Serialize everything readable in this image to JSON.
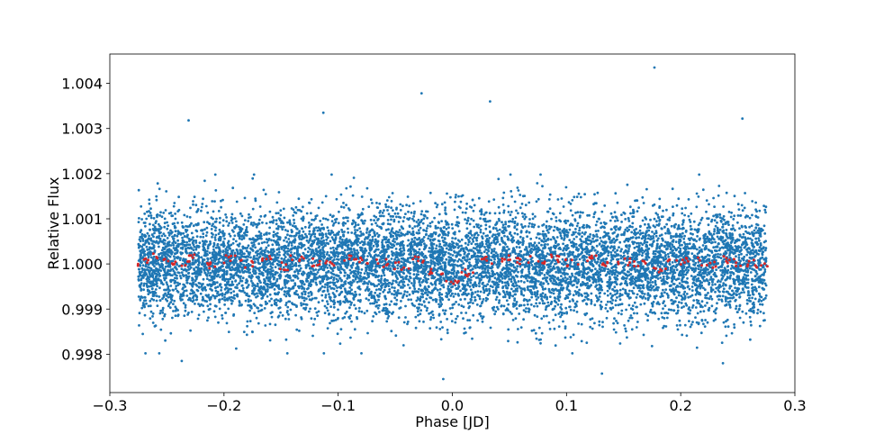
{
  "chart_data": {
    "type": "scatter",
    "title": "",
    "xlabel": "Phase [JD]",
    "ylabel": "Relative Flux",
    "xlim": [
      -0.3,
      0.3
    ],
    "ylim": [
      0.99715,
      1.00465
    ],
    "xticks": [
      -0.3,
      -0.2,
      -0.1,
      0.0,
      0.1,
      0.2,
      0.3
    ],
    "xtick_labels": [
      "−0.3",
      "−0.2",
      "−0.1",
      "0.0",
      "0.1",
      "0.2",
      "0.3"
    ],
    "yticks": [
      0.998,
      0.999,
      1.0,
      1.001,
      1.002,
      1.003,
      1.004
    ],
    "ytick_labels": [
      "0.998",
      "0.999",
      "1.000",
      "1.001",
      "1.002",
      "1.003",
      "1.004"
    ],
    "grid": false,
    "legend": "none",
    "series": [
      {
        "color": "#1f77b4",
        "marker": "point",
        "x_range": [
          -0.275,
          0.275
        ],
        "center": 1.0,
        "scatter_sigma": 0.0006,
        "approx_points": 9000,
        "outliers": [
          {
            "x": 0.177,
            "y": 1.00435
          },
          {
            "x": -0.027,
            "y": 1.00378
          },
          {
            "x": 0.033,
            "y": 1.0036
          },
          {
            "x": -0.113,
            "y": 1.00335
          },
          {
            "x": 0.254,
            "y": 1.00322
          },
          {
            "x": -0.231,
            "y": 1.00318
          },
          {
            "x": -0.008,
            "y": 0.99745
          },
          {
            "x": 0.131,
            "y": 0.99757
          },
          {
            "x": -0.237,
            "y": 0.99785
          },
          {
            "x": 0.237,
            "y": 0.9978
          }
        ]
      },
      {
        "color": "#d62728",
        "marker": "binned",
        "x": [
          -0.27,
          -0.255,
          -0.24,
          -0.225,
          -0.21,
          -0.195,
          -0.18,
          -0.165,
          -0.15,
          -0.135,
          -0.12,
          -0.105,
          -0.09,
          -0.075,
          -0.06,
          -0.045,
          -0.03,
          -0.015,
          0.0,
          0.015,
          0.03,
          0.045,
          0.06,
          0.075,
          0.09,
          0.105,
          0.12,
          0.135,
          0.15,
          0.165,
          0.18,
          0.195,
          0.21,
          0.225,
          0.24,
          0.255,
          0.27
        ],
        "y": [
          1.00005,
          1.00015,
          0.99998,
          1.00012,
          0.99995,
          1.0001,
          1.0,
          1.00008,
          0.99995,
          1.0001,
          1.00003,
          0.99998,
          1.0001,
          1.00005,
          1.00002,
          0.99995,
          1.0001,
          0.99985,
          0.99965,
          0.9998,
          1.00008,
          1.0001,
          1.00005,
          1.0001,
          1.00012,
          1.00003,
          1.0001,
          0.99998,
          1.00005,
          1.0,
          0.99985,
          1.00005,
          1.0001,
          0.99998,
          1.00008,
          1.00002,
          1.0
        ]
      }
    ]
  }
}
